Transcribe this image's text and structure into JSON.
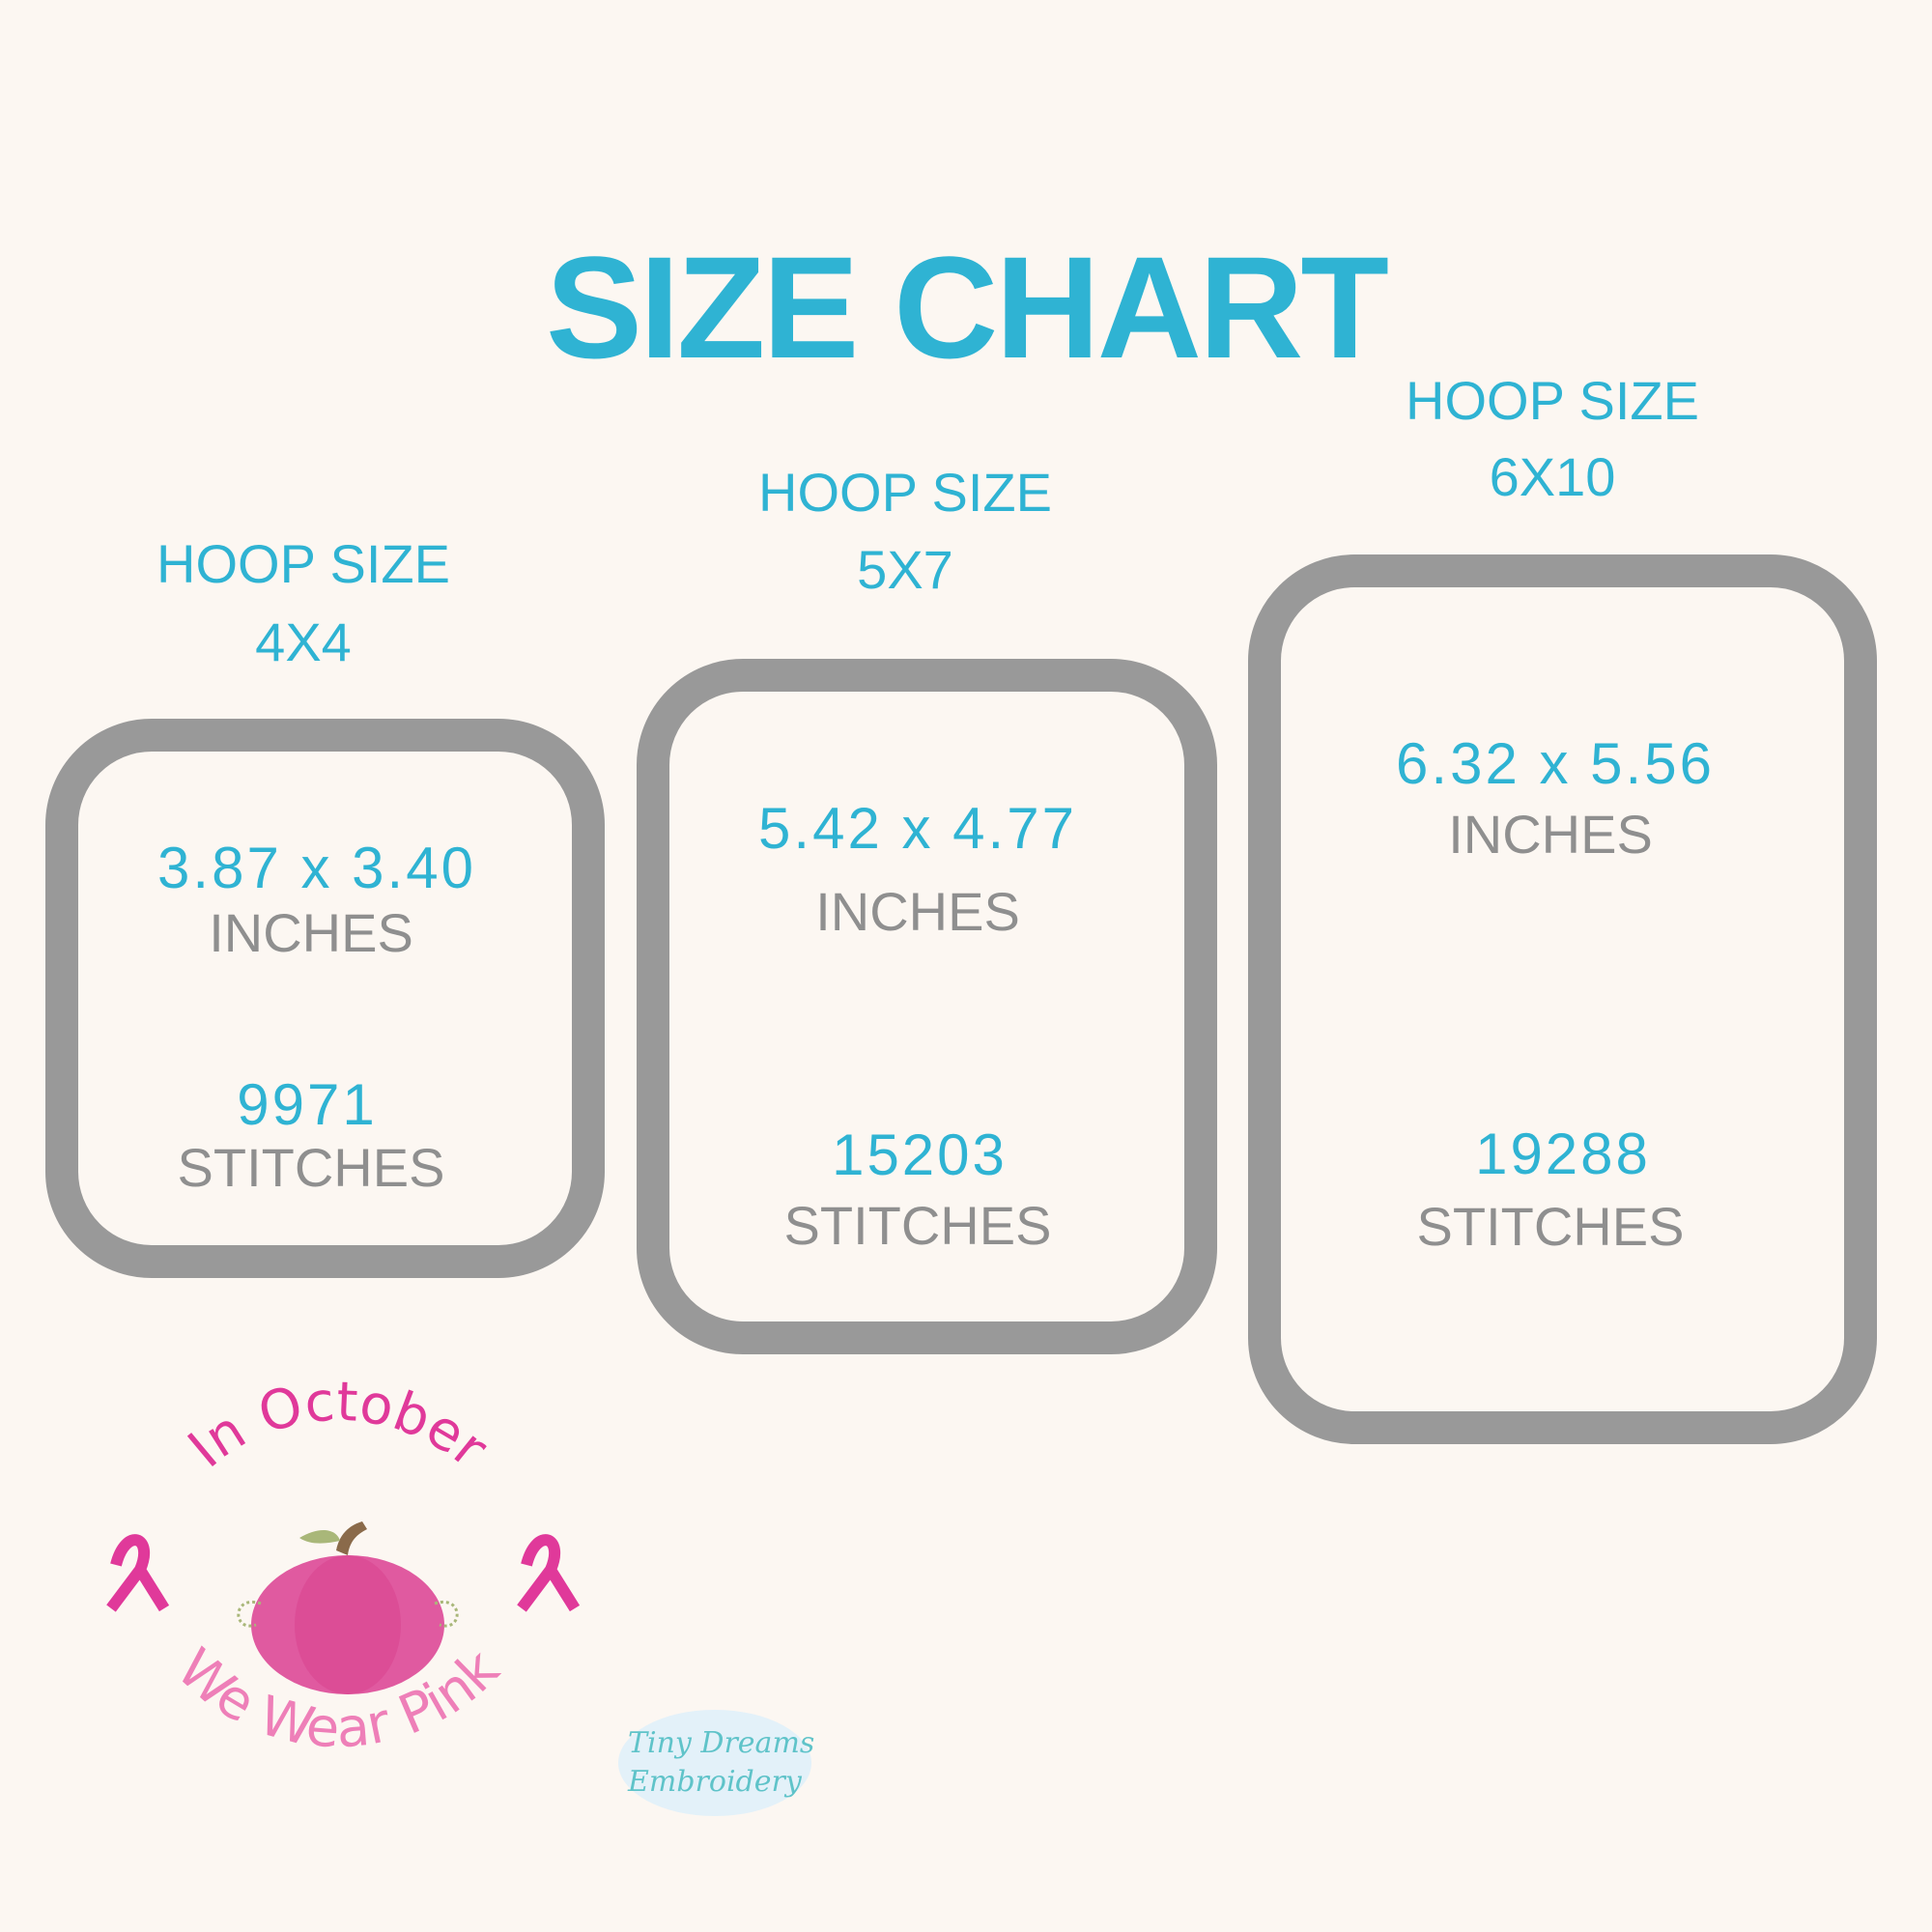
{
  "title": "SIZE CHART",
  "hoops": [
    {
      "label": "HOOP SIZE",
      "size": "4X4",
      "dimensions": "3.87 x 3.40",
      "dim_unit": "INCHES",
      "stitches": "9971",
      "stitch_unit": "STITCHES"
    },
    {
      "label": "HOOP SIZE",
      "size": "5X7",
      "dimensions": "5.42 x 4.77",
      "dim_unit": "INCHES",
      "stitches": "15203",
      "stitch_unit": "STITCHES"
    },
    {
      "label": "HOOP SIZE",
      "size": "6X10",
      "dimensions": "6.32 x 5.56",
      "dim_unit": "INCHES",
      "stitches": "19288",
      "stitch_unit": "STITCHES"
    }
  ],
  "logo": {
    "top_text": "In October",
    "bottom_text": "We Wear Pink",
    "watermark_line1": "Tiny Dreams",
    "watermark_line2": "Embroidery"
  },
  "colors": {
    "accent": "#2fb3d3",
    "frame": "#999999",
    "text_grey": "#8f8f8f",
    "pink": "#e0399a",
    "background": "#fcf7f2"
  }
}
